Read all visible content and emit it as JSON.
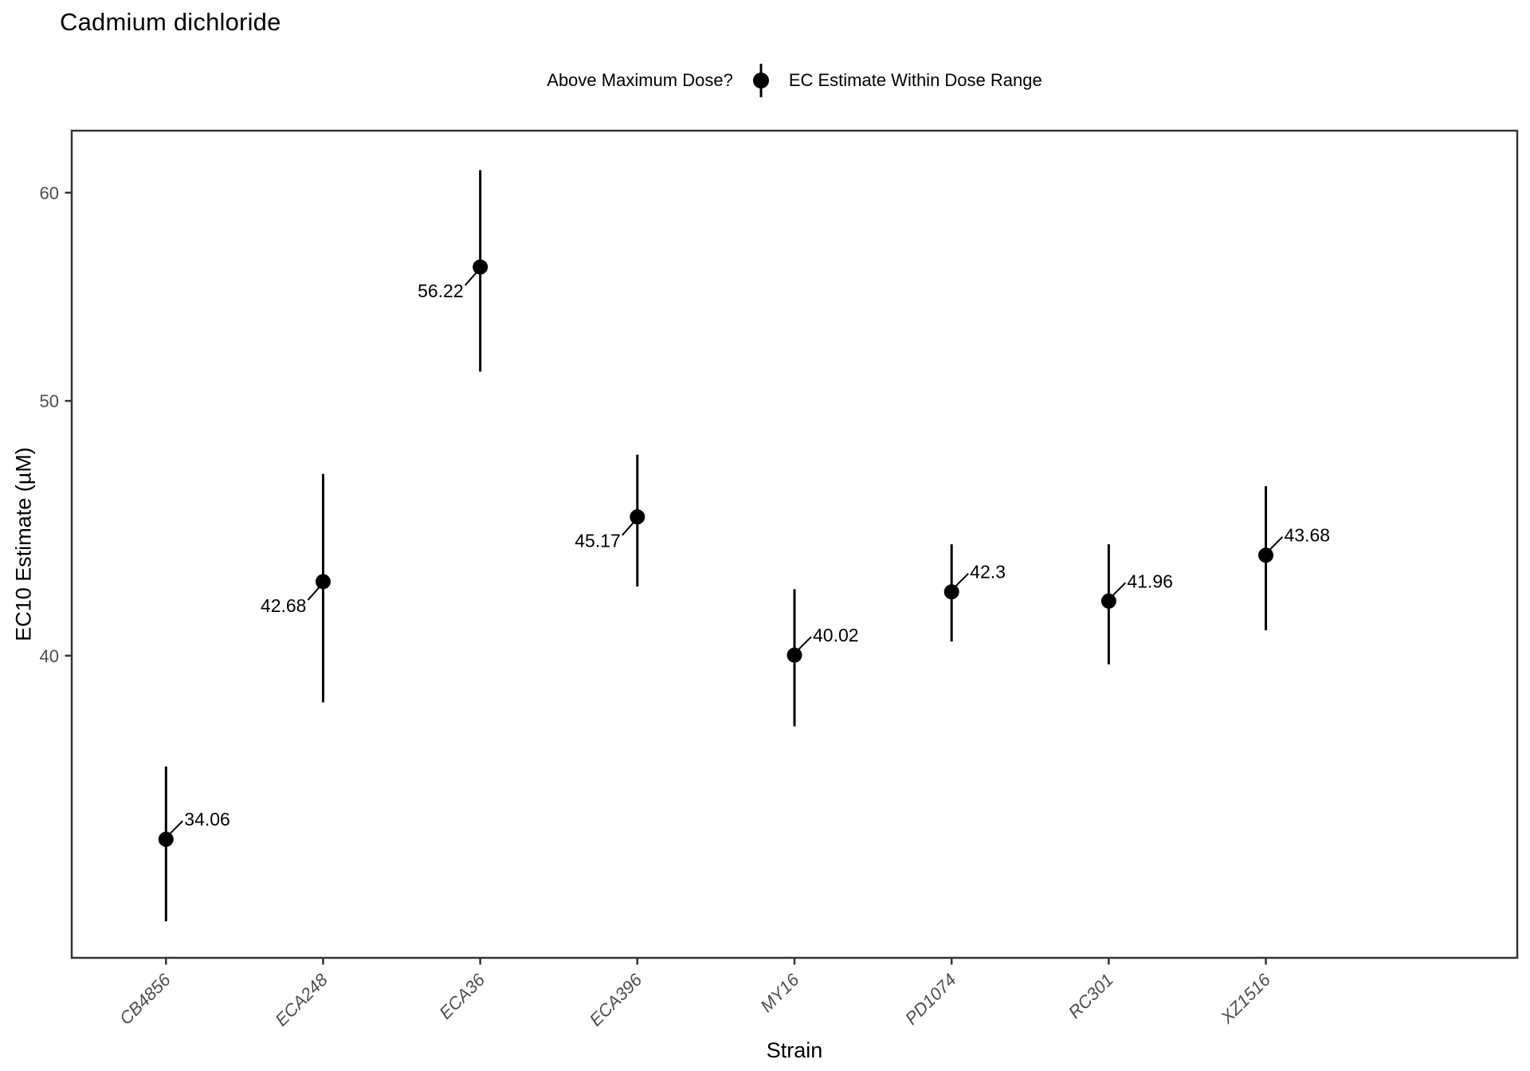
{
  "header": {
    "title": "Cadmium dichloride"
  },
  "axes": {
    "x_title": "Strain",
    "y_title": "EC10 Estimate (µM)"
  },
  "chart_data": {
    "type": "pointrange",
    "title": "Cadmium dichloride",
    "xlabel": "Strain",
    "ylabel": "EC10 Estimate (µM)",
    "categories": [
      "CB4856",
      "ECA248",
      "ECA36",
      "ECA396",
      "MY16",
      "PD1074",
      "RC301",
      "XZ1516"
    ],
    "y_axis": {
      "scale": "log10",
      "ticks": [
        40,
        50,
        60
      ],
      "range": [
        30.7,
        63.35
      ]
    },
    "grid": false,
    "legend": {
      "position": "top",
      "title": "Above Maximum Dose?",
      "items": [
        {
          "label": "EC Estimate Within Dose Range",
          "glyph": "pointrange"
        }
      ]
    },
    "series": [
      {
        "name": "EC Estimate Within Dose Range",
        "points": [
          {
            "strain": "CB4856",
            "estimate": 34.06,
            "ci_lower": 31.7,
            "ci_upper": 36.3,
            "label": "34.06",
            "label_side": "right"
          },
          {
            "strain": "ECA248",
            "estimate": 42.68,
            "ci_lower": 38.4,
            "ci_upper": 46.9,
            "label": "42.68",
            "label_side": "left"
          },
          {
            "strain": "ECA36",
            "estimate": 56.22,
            "ci_lower": 51.3,
            "ci_upper": 61.2,
            "label": "56.22",
            "label_side": "left"
          },
          {
            "strain": "ECA396",
            "estimate": 45.17,
            "ci_lower": 42.5,
            "ci_upper": 47.7,
            "label": "45.17",
            "label_side": "left"
          },
          {
            "strain": "MY16",
            "estimate": 40.02,
            "ci_lower": 37.6,
            "ci_upper": 42.4,
            "label": "40.02",
            "label_side": "right"
          },
          {
            "strain": "PD1074",
            "estimate": 42.3,
            "ci_lower": 40.5,
            "ci_upper": 44.1,
            "label": "42.3",
            "label_side": "right"
          },
          {
            "strain": "RC301",
            "estimate": 41.96,
            "ci_lower": 39.7,
            "ci_upper": 44.1,
            "label": "41.96",
            "label_side": "right"
          },
          {
            "strain": "XZ1516",
            "estimate": 43.68,
            "ci_lower": 40.9,
            "ci_upper": 46.4,
            "label": "43.68",
            "label_side": "right"
          }
        ]
      }
    ],
    "colors": {
      "point": "#000000",
      "axis_text": "#4d4d4d",
      "panel_border": "#333333"
    }
  }
}
